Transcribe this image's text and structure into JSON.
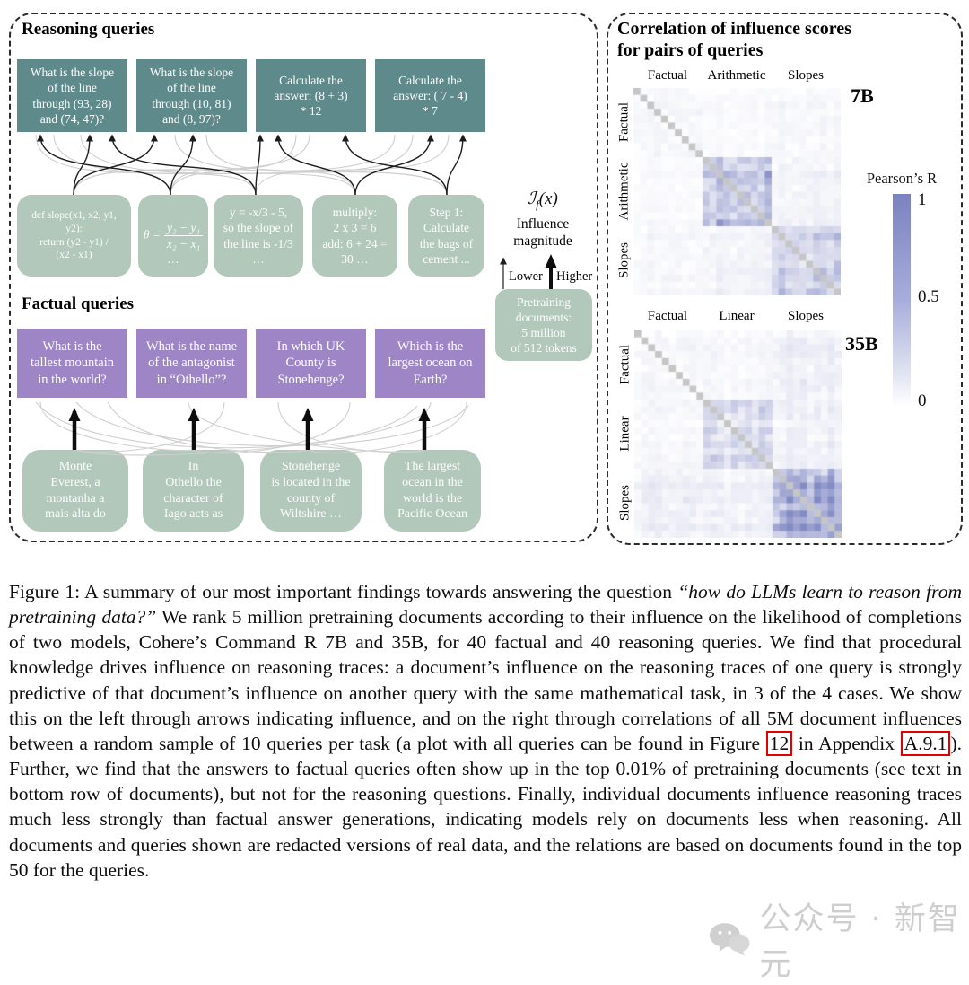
{
  "colors": {
    "teal_box": "#5f8a8b",
    "purple_box": "#9d85c6",
    "sage_box": "#b2c8ba",
    "heat_max": "#7a82c0",
    "heat_diag": "#c6c6c6",
    "link_box_red": "#e10000",
    "dashed_border": "#2b2b2b"
  },
  "left_panel": {
    "reasoning_heading": "Reasoning queries",
    "factual_heading": "Factual queries",
    "reasoning_queries": [
      "What is the slope\nof the line\nthrough (93, 28)\nand (74, 47)?",
      "What is the slope\nof the line\nthrough (10, 81)\nand (8, 97)?",
      "Calculate the\nanswer: (8 + 3)\n* 12",
      "Calculate the\nanswer: ( 7 - 4)\n* 7"
    ],
    "reasoning_documents": {
      "code_doc": "def slope(x1, x2, y1,\ny2):\nreturn (y2 - y1) /\n(x2 - x1)",
      "theta_lhs": "θ =",
      "theta_numerator": "y₂ − y₁",
      "theta_denominator": "x₂ − x₁",
      "theta_ellipsis": "…",
      "slope_doc": "y = -x/3 - 5,\nso the slope of\nthe line is -1/3\n…",
      "multiply_doc": "multiply:\n2 x 3 = 6\nadd: 6 + 24 =\n30 …",
      "cement_doc": "Step 1:\nCalculate\nthe bags of\ncement ..."
    },
    "factual_queries": [
      "What is the\ntallest mountain\nin the world?",
      "What is the name\nof the antagonist\nin “Othello”?",
      "In which UK\nCounty is\nStonehenge?",
      "Which is the\nlargest ocean on\nEarth?"
    ],
    "factual_documents": [
      "Monte\nEverest, a\nmontanha a\nmais alta do",
      "In\nOthello the\ncharacter of\nIago acts as",
      "Stonehenge\nis located in the\ncounty of\nWiltshire …",
      "The largest\nocean in the\nworld is the\nPacific Ocean"
    ],
    "influence": {
      "formula_script_i": "ℐ",
      "formula_sub": "f",
      "formula_rest": "(x)",
      "label": "Influence\nmagnitude",
      "lower": "Lower",
      "higher": "Higher",
      "pretraining_box": "Pretraining\ndocuments:\n5 million\nof 512 tokens"
    }
  },
  "right_panel": {
    "title": "Correlation of influence scores\nfor pairs of queries",
    "colorbar": {
      "title": "Pearson’s R",
      "ticks": [
        "1",
        "0.5",
        "0"
      ]
    }
  },
  "chart_data": [
    {
      "type": "heatmap",
      "model": "7B",
      "n": 30,
      "group_size": 10,
      "groups": [
        "Factual",
        "Arithmetic",
        "Slopes"
      ],
      "scale": {
        "label": "Pearson’s R",
        "min": 0,
        "max": 1
      },
      "legend_position": "right",
      "block_mean_correlations": [
        [
          0.05,
          0.03,
          0.05
        ],
        [
          0.03,
          0.4,
          0.08
        ],
        [
          0.05,
          0.08,
          0.33
        ]
      ],
      "block_spread": [
        [
          0.04,
          0.03,
          0.04
        ],
        [
          0.03,
          0.16,
          0.05
        ],
        [
          0.04,
          0.05,
          0.12
        ]
      ],
      "seed": 7
    },
    {
      "type": "heatmap",
      "model": "35B",
      "n": 30,
      "group_size": 10,
      "groups": [
        "Factual",
        "Linear",
        "Slopes"
      ],
      "scale": {
        "label": "Pearson’s R",
        "min": 0,
        "max": 1
      },
      "legend_position": "right",
      "block_mean_correlations": [
        [
          0.05,
          0.05,
          0.1
        ],
        [
          0.05,
          0.24,
          0.09
        ],
        [
          0.1,
          0.09,
          0.56
        ]
      ],
      "block_spread": [
        [
          0.04,
          0.04,
          0.05
        ],
        [
          0.04,
          0.13,
          0.05
        ],
        [
          0.05,
          0.05,
          0.16
        ]
      ],
      "seed": 35
    }
  ],
  "caption": {
    "segments": [
      {
        "text": "Figure 1: A summary of our most important findings towards answering the question ",
        "style": "normal",
        "name": "caption-text"
      },
      {
        "text": "“how do LLMs learn to reason from pretraining data?”",
        "style": "italic",
        "name": "caption-question-italic"
      },
      {
        "text": " We rank 5 million pretraining documents according to their influence on the likelihood of completions of two models, Cohere’s Command R 7B and 35B, for 40 factual and 40 reasoning queries. We find that procedural knowledge drives influence on reasoning traces: a document’s influence on the reasoning traces of one query is strongly predictive of that document’s influence on another query with the same mathematical task, in 3 of the 4 cases. We show this on the left through arrows indicating influence, and on the right through correlations of all 5M document influences between a random sample of 10 queries per task (a plot with all queries can be found in Figure ",
        "style": "normal",
        "name": "caption-text"
      },
      {
        "text": "12",
        "style": "linkbox",
        "name": "figure-12-link",
        "interactable": true
      },
      {
        "text": " in Appendix ",
        "style": "normal",
        "name": "caption-text"
      },
      {
        "text": "A.9.1",
        "style": "linkbox",
        "name": "appendix-a91-link",
        "interactable": true
      },
      {
        "text": "). Further, we find that the answers to factual queries often show up in the top 0.01% of pretraining documents (see text in bottom row of documents), but not for the reasoning questions. Finally, individual documents influence reasoning traces much less strongly than factual answer generations, indicating models rely on documents less when reasoning. All documents and queries shown are redacted versions of real data, and the relations are based on documents found in the top 50 for the queries.",
        "style": "normal",
        "name": "caption-text"
      }
    ]
  },
  "watermark": {
    "text": "公众号 · 新智元"
  }
}
